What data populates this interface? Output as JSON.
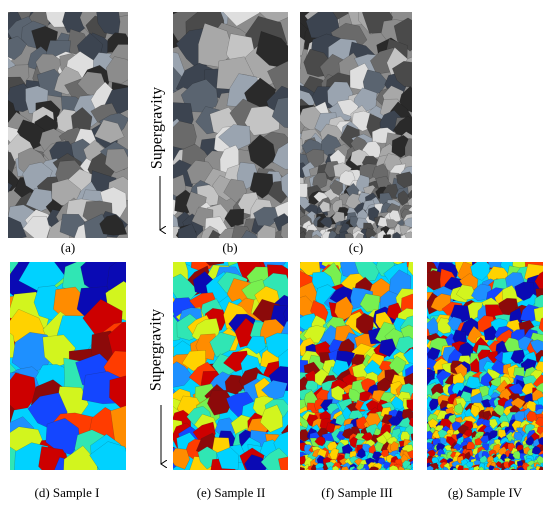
{
  "figure": {
    "panels": [
      {
        "label": "(a)"
      },
      {
        "label": "(b)"
      },
      {
        "label": "(c)"
      },
      {
        "label": "(d) Sample I"
      },
      {
        "label": "(e) Sample II"
      },
      {
        "label": "(f) Sample III"
      },
      {
        "label": "(g) Sample IV"
      }
    ],
    "direction_labels": [
      "Supergravity",
      "Supergravity"
    ]
  }
}
